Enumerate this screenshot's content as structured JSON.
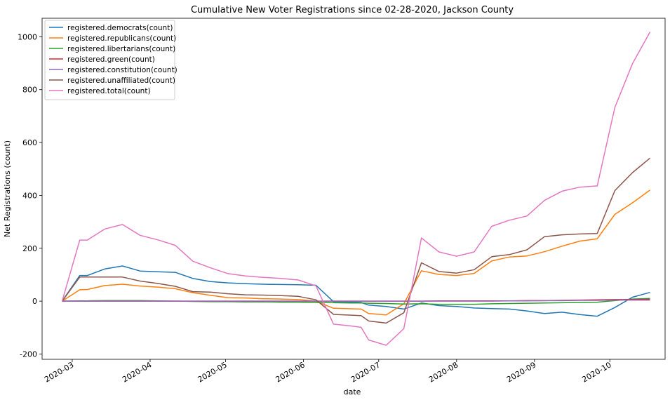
{
  "chart_data": {
    "type": "line",
    "title": "Cumulative New Voter Registrations since 02-28-2020, Jackson County",
    "xlabel": "date",
    "ylabel": "Net Registrations (count)",
    "ylim": [
      -220,
      1070
    ],
    "xlim": [
      "2020-02-18",
      "2020-10-23"
    ],
    "yticks": [
      -200,
      0,
      200,
      400,
      600,
      800,
      1000
    ],
    "xticks": [
      "2020-03-01",
      "2020-04-01",
      "2020-05-01",
      "2020-06-01",
      "2020-07-01",
      "2020-08-01",
      "2020-09-01",
      "2020-10-01"
    ],
    "xtick_labels": [
      "2020-03",
      "2020-04",
      "2020-05",
      "2020-06",
      "2020-07",
      "2020-08",
      "2020-09",
      "2020-10"
    ],
    "grid": false,
    "legend_position": "top-left",
    "x": [
      "2020-02-26",
      "2020-03-04",
      "2020-03-07",
      "2020-03-14",
      "2020-03-21",
      "2020-03-28",
      "2020-04-04",
      "2020-04-11",
      "2020-04-18",
      "2020-04-25",
      "2020-05-02",
      "2020-05-09",
      "2020-05-16",
      "2020-05-23",
      "2020-05-30",
      "2020-06-06",
      "2020-06-13",
      "2020-06-20",
      "2020-06-24",
      "2020-06-27",
      "2020-07-04",
      "2020-07-11",
      "2020-07-18",
      "2020-07-25",
      "2020-08-01",
      "2020-08-08",
      "2020-08-15",
      "2020-08-22",
      "2020-08-29",
      "2020-09-05",
      "2020-09-12",
      "2020-09-19",
      "2020-09-26",
      "2020-10-03",
      "2020-10-10",
      "2020-10-17"
    ],
    "series": [
      {
        "name": "registered.democrats(count)",
        "color": "#1f77b4",
        "values": [
          0,
          97,
          97,
          122,
          133,
          114,
          111,
          109,
          86,
          74,
          69,
          66,
          64,
          63,
          62,
          60,
          -2,
          -3,
          -5,
          -15,
          -20,
          -30,
          -7,
          -17,
          -20,
          -26,
          -28,
          -30,
          -37,
          -47,
          -42,
          -51,
          -57,
          -24,
          15,
          33
        ]
      },
      {
        "name": "registered.republicans(count)",
        "color": "#ff7f0e",
        "values": [
          0,
          43,
          44,
          59,
          64,
          57,
          53,
          47,
          32,
          22,
          13,
          12,
          9,
          8,
          6,
          0,
          -27,
          -29,
          -30,
          -47,
          -52,
          -10,
          115,
          101,
          97,
          105,
          152,
          167,
          171,
          187,
          208,
          227,
          236,
          328,
          372,
          420
        ]
      },
      {
        "name": "registered.libertarians(count)",
        "color": "#2ca02c",
        "values": [
          0,
          1,
          1,
          2,
          2,
          2,
          1,
          0,
          -1,
          -2,
          -2,
          -3,
          -3,
          -4,
          -4,
          -5,
          -6,
          -7,
          -7,
          -8,
          -9,
          -11,
          -10,
          -12,
          -12,
          -12,
          -10,
          -9,
          -8,
          -7,
          -6,
          -5,
          -4,
          2,
          8,
          10
        ]
      },
      {
        "name": "registered.green(count)",
        "color": "#d62728",
        "values": [
          0,
          0,
          0,
          0,
          0,
          0,
          0,
          0,
          0,
          0,
          0,
          0,
          0,
          0,
          0,
          0,
          0,
          0,
          0,
          0,
          0,
          0,
          0,
          1,
          1,
          1,
          1,
          1,
          2,
          2,
          3,
          4,
          5,
          6,
          6,
          7
        ]
      },
      {
        "name": "registered.constitution(count)",
        "color": "#9467bd",
        "values": [
          0,
          0,
          0,
          0,
          0,
          0,
          0,
          0,
          0,
          0,
          0,
          0,
          0,
          0,
          0,
          0,
          0,
          0,
          0,
          0,
          0,
          0,
          0,
          0,
          0,
          0,
          0,
          1,
          1,
          2,
          2,
          3,
          3,
          4,
          4,
          4
        ]
      },
      {
        "name": "registered.unaffiliated(count)",
        "color": "#8c564b",
        "values": [
          0,
          91,
          91,
          91,
          91,
          76,
          67,
          56,
          36,
          34,
          28,
          24,
          23,
          21,
          18,
          5,
          -50,
          -53,
          -55,
          -75,
          -83,
          -44,
          145,
          112,
          106,
          119,
          168,
          176,
          194,
          244,
          251,
          254,
          256,
          418,
          486,
          541
        ]
      },
      {
        "name": "registered.total(count)",
        "color": "#e377c2",
        "values": [
          0,
          231,
          231,
          273,
          290,
          249,
          232,
          211,
          151,
          126,
          104,
          95,
          90,
          86,
          80,
          58,
          -87,
          -94,
          -99,
          -147,
          -167,
          -104,
          239,
          186,
          170,
          186,
          283,
          306,
          322,
          381,
          416,
          431,
          436,
          733,
          898,
          1018
        ]
      }
    ]
  }
}
